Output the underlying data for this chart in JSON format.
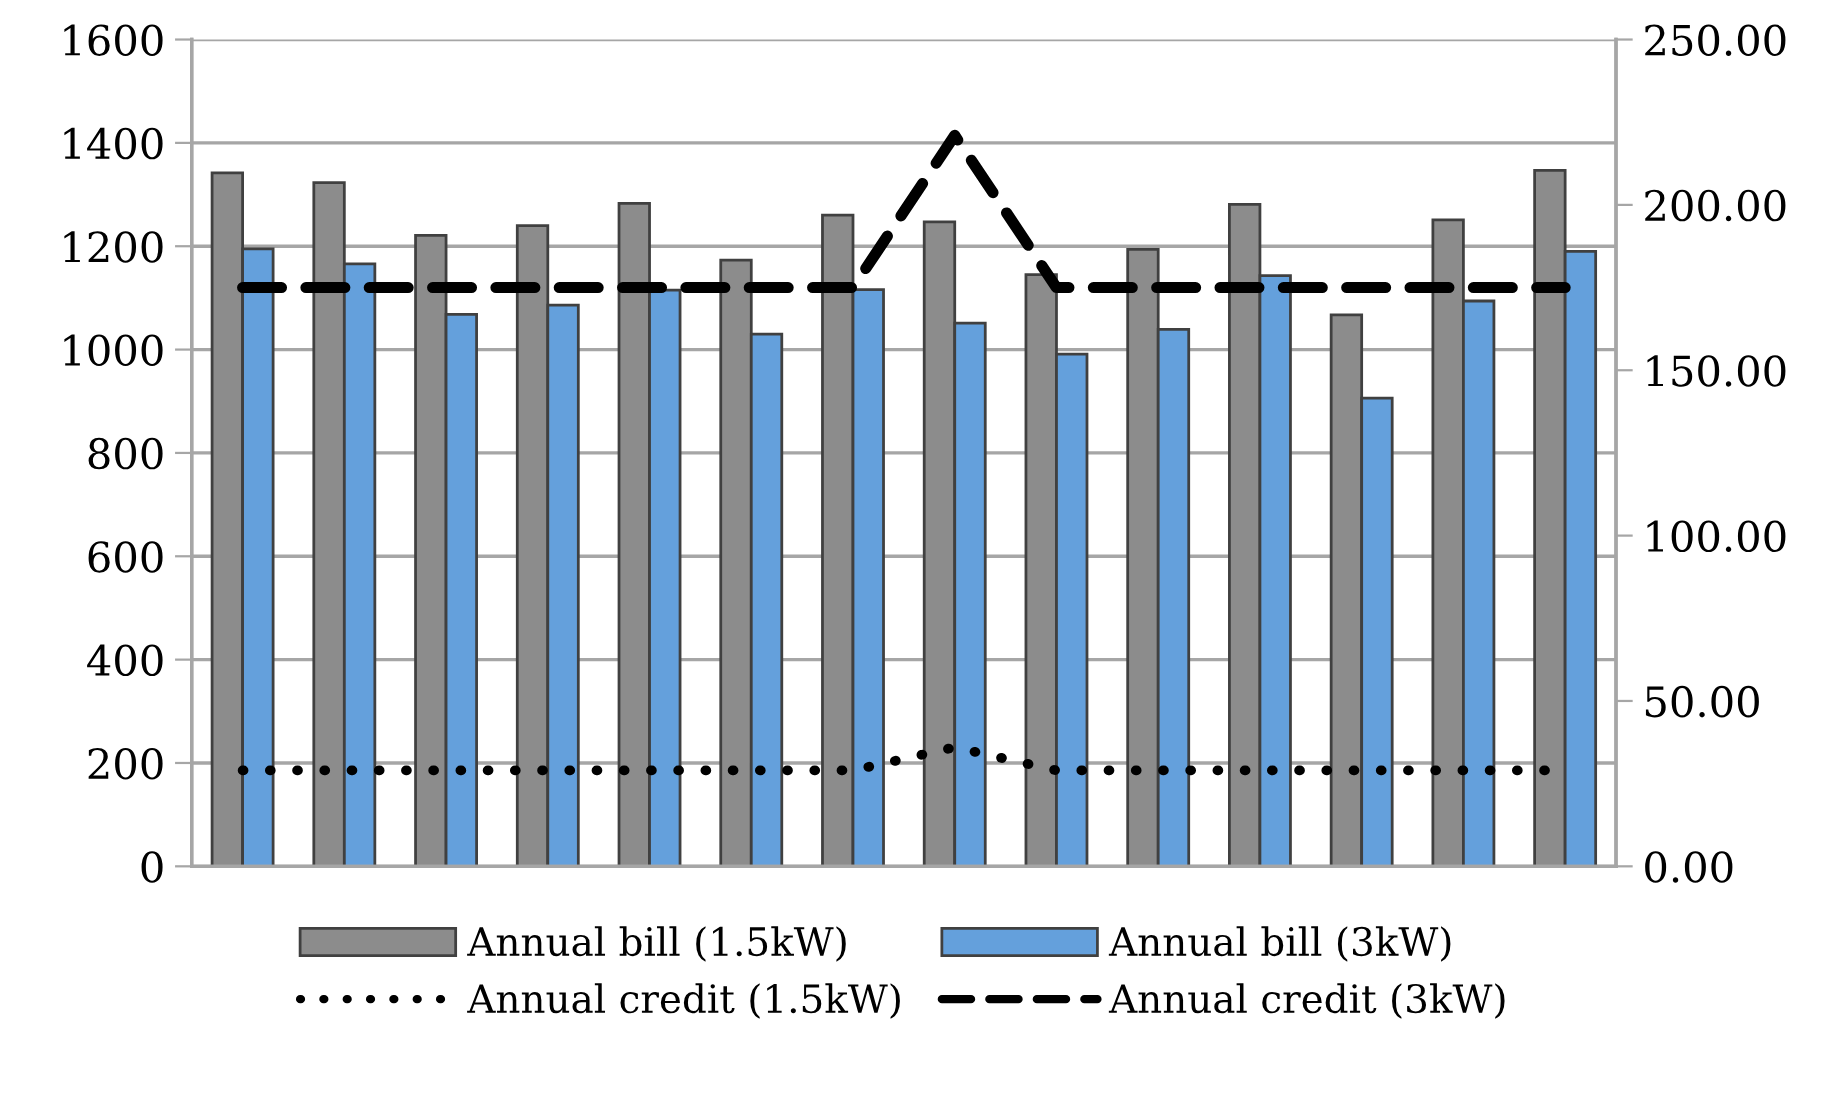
{
  "chart_data": {
    "type": "bar",
    "categories": [
      null,
      null,
      null,
      null,
      null,
      null,
      null,
      null,
      null,
      null,
      null,
      null,
      null,
      null
    ],
    "series": [
      {
        "name": "Annual bill (1.5kW)",
        "color": "#8c8c8c",
        "values": [
          1342,
          1323,
          1221,
          1240,
          1283,
          1173,
          1260,
          1247,
          1145,
          1194,
          1281,
          1067,
          1251,
          1347
        ]
      },
      {
        "name": "Annual bill (3kW)",
        "color": "#64a0dc",
        "values": [
          1195,
          1166,
          1068,
          1086,
          1115,
          1030,
          1116,
          1051,
          991,
          1039,
          1143,
          906,
          1094,
          1190
        ]
      },
      {
        "name": "Annual credit (1.5kW)",
        "type": "line",
        "axis": "y2",
        "color": "#000000",
        "line_style": "dotted",
        "values": [
          29,
          29,
          29,
          29,
          29,
          29,
          29,
          36,
          29,
          29,
          29,
          29,
          29,
          29
        ]
      },
      {
        "name": "Annual credit (3kW)",
        "type": "line",
        "axis": "y2",
        "color": "#000000",
        "line_style": "dashed",
        "values": [
          175,
          175,
          175,
          175,
          175,
          175,
          175,
          221,
          175,
          175,
          175,
          175,
          175,
          175
        ]
      }
    ],
    "ylim": [
      0,
      1600
    ],
    "yticks": [
      0,
      200,
      400,
      600,
      800,
      1000,
      1200,
      1400,
      1600
    ],
    "y2lim": [
      0,
      250
    ],
    "y2ticks": [
      {
        "value": 0,
        "label": "0.00"
      },
      {
        "value": 50,
        "label": "50.00"
      },
      {
        "value": 100,
        "label": "100.00"
      },
      {
        "value": 150,
        "label": "150.00"
      },
      {
        "value": 200,
        "label": "200.00"
      },
      {
        "value": 250,
        "label": "250.00"
      }
    ],
    "grid": "y",
    "legend": "bottom",
    "tick_labels": "y"
  }
}
